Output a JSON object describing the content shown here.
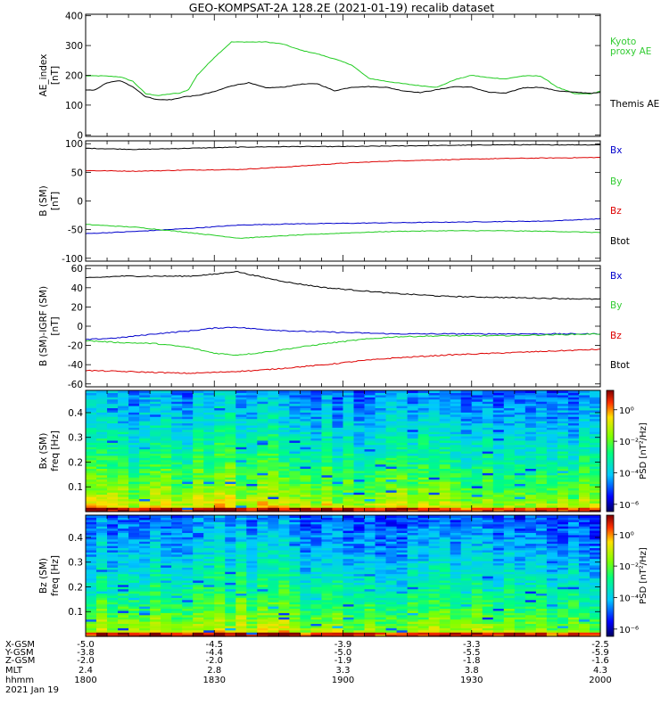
{
  "title": "GEO-KOMPSAT-2A 128.2E (2021-01-19) recalib dataset",
  "colors": {
    "black": "#000000",
    "blue": "#0000cc",
    "green": "#22cc22",
    "red": "#dd0000",
    "greenLabel": "#33cc33"
  },
  "chart_data": [
    {
      "type": "line",
      "ylabel": "AE_index\n[nT]",
      "ylim": [
        -5,
        405
      ],
      "yticks": [
        0,
        100,
        200,
        300,
        400
      ],
      "series": [
        {
          "name": "Kyoto proxy AE",
          "color": "#22cc22",
          "x": [
            0,
            4,
            8,
            11,
            14,
            17,
            20,
            22,
            24,
            26,
            30,
            34,
            38,
            42,
            46,
            50,
            54,
            58,
            62,
            66,
            70,
            74,
            78,
            82,
            86,
            90,
            94,
            98,
            102,
            106,
            110,
            114,
            118,
            120
          ],
          "values": [
            198,
            198,
            195,
            180,
            138,
            132,
            138,
            140,
            152,
            200,
            260,
            312,
            312,
            312,
            305,
            285,
            272,
            255,
            235,
            190,
            180,
            172,
            165,
            160,
            185,
            200,
            192,
            188,
            198,
            198,
            160,
            138,
            138,
            147
          ]
        },
        {
          "name": "Themis AE",
          "color": "#000000",
          "x": [
            0,
            2,
            5,
            8,
            11,
            14,
            17,
            20,
            23,
            26,
            30,
            34,
            38,
            42,
            46,
            50,
            54,
            58,
            62,
            66,
            70,
            74,
            78,
            82,
            86,
            90,
            94,
            98,
            102,
            106,
            110,
            114,
            118,
            120
          ],
          "values": [
            150,
            150,
            175,
            182,
            162,
            128,
            118,
            118,
            128,
            132,
            145,
            165,
            175,
            158,
            160,
            170,
            172,
            148,
            160,
            162,
            160,
            148,
            142,
            152,
            162,
            160,
            143,
            140,
            158,
            160,
            148,
            143,
            140,
            142
          ]
        }
      ],
      "labels": [
        {
          "text": "Kyoto\nproxy AE",
          "color": "#33cc33"
        },
        {
          "text": "Themis AE",
          "color": "#000000"
        }
      ]
    },
    {
      "type": "line",
      "ylabel": "B (SM)\n[nT]",
      "ylim": [
        -105,
        105
      ],
      "yticks": [
        -100,
        -50,
        0,
        50,
        100
      ],
      "series": [
        {
          "name": "Btot",
          "color": "#000000",
          "x": [
            0,
            12,
            24,
            36,
            48,
            60,
            72,
            84,
            96,
            108,
            120
          ],
          "values": [
            92,
            90,
            92,
            94,
            95,
            95,
            96,
            97,
            98,
            98,
            98
          ]
        },
        {
          "name": "Bz",
          "color": "#dd0000",
          "x": [
            0,
            12,
            24,
            36,
            48,
            60,
            72,
            84,
            96,
            108,
            120
          ],
          "values": [
            53,
            52,
            54,
            55,
            60,
            66,
            70,
            72,
            74,
            75,
            76
          ]
        },
        {
          "name": "Bx",
          "color": "#0000cc",
          "x": [
            0,
            12,
            24,
            36,
            48,
            60,
            72,
            84,
            96,
            108,
            120
          ],
          "values": [
            -57,
            -53,
            -48,
            -42,
            -40,
            -39,
            -38,
            -37,
            -36,
            -35,
            -31
          ]
        },
        {
          "name": "By",
          "color": "#22cc22",
          "x": [
            0,
            12,
            24,
            36,
            48,
            60,
            72,
            84,
            96,
            108,
            120
          ],
          "values": [
            -41,
            -46,
            -55,
            -65,
            -60,
            -56,
            -53,
            -52,
            -52,
            -53,
            -55
          ]
        }
      ],
      "labels": [
        {
          "text": "Bx",
          "color": "#0000cc"
        },
        {
          "text": "By",
          "color": "#33cc33"
        },
        {
          "text": "Bz",
          "color": "#dd0000"
        },
        {
          "text": "Btot",
          "color": "#000000"
        }
      ]
    },
    {
      "type": "line",
      "ylabel": "B (SM)-IGRF (SM)\n[nT]",
      "ylim": [
        -63,
        63
      ],
      "yticks": [
        -60,
        -40,
        -20,
        0,
        20,
        40,
        60
      ],
      "series": [
        {
          "name": "Btot",
          "color": "#000000",
          "x": [
            0,
            8,
            16,
            24,
            30,
            35,
            40,
            48,
            56,
            64,
            72,
            84,
            96,
            108,
            120
          ],
          "values": [
            50,
            52,
            52,
            52,
            54,
            57,
            52,
            45,
            40,
            37,
            34,
            31,
            30,
            29,
            28
          ]
        },
        {
          "name": "Bx",
          "color": "#0000cc",
          "x": [
            0,
            8,
            16,
            24,
            30,
            35,
            40,
            48,
            56,
            64,
            72,
            84,
            96,
            108,
            120
          ],
          "values": [
            -14,
            -12,
            -8,
            -5,
            -2,
            -1,
            -3,
            -5,
            -6,
            -7,
            -8,
            -8,
            -8,
            -8,
            -8
          ]
        },
        {
          "name": "By",
          "color": "#22cc22",
          "x": [
            0,
            8,
            16,
            24,
            30,
            35,
            40,
            48,
            56,
            64,
            72,
            84,
            96,
            108,
            120
          ],
          "values": [
            -15,
            -17,
            -18,
            -22,
            -28,
            -30,
            -28,
            -23,
            -18,
            -14,
            -11,
            -10,
            -10,
            -9,
            -8
          ]
        },
        {
          "name": "Bz",
          "color": "#dd0000",
          "x": [
            0,
            8,
            16,
            24,
            30,
            35,
            40,
            48,
            56,
            64,
            72,
            84,
            96,
            108,
            120
          ],
          "values": [
            -46,
            -47,
            -48,
            -49,
            -48,
            -47,
            -46,
            -43,
            -40,
            -36,
            -33,
            -30,
            -28,
            -26,
            -24
          ]
        }
      ],
      "labels": [
        {
          "text": "Bx",
          "color": "#0000cc"
        },
        {
          "text": "By",
          "color": "#33cc33"
        },
        {
          "text": "Bz",
          "color": "#dd0000"
        },
        {
          "text": "Btot",
          "color": "#000000"
        }
      ]
    },
    {
      "type": "heatmap",
      "ylabel": "Bx (SM)\nfreq [Hz]",
      "ylim": [
        0,
        0.49
      ],
      "yticks": [
        0.1,
        0.2,
        0.3,
        0.4
      ],
      "colorbar_label": "PSD [nT²/Hz]",
      "colorbar_ticks": [
        "10⁰",
        "10⁻²",
        "10⁻⁴",
        "10⁻⁶"
      ]
    },
    {
      "type": "heatmap",
      "ylabel": "Bz (SM)\nfreq [Hz]",
      "ylim": [
        0,
        0.49
      ],
      "yticks": [
        0.1,
        0.2,
        0.3,
        0.4
      ],
      "colorbar_label": "PSD [nT²/Hz]",
      "colorbar_ticks": [
        "10⁰",
        "10⁻²",
        "10⁻⁴",
        "10⁻⁶"
      ]
    }
  ],
  "xaxis": {
    "row_labels": [
      "X-GSM",
      "Y-GSM",
      "Z-GSM",
      "MLT",
      "hhmm"
    ],
    "date": "2021 Jan 19",
    "columns": [
      {
        "t": 0,
        "values": [
          "-5.0",
          "-3.8",
          "-2.0",
          "2.4",
          "1800"
        ]
      },
      {
        "t": 30,
        "values": [
          "-4.5",
          "-4.4",
          "-2.0",
          "2.8",
          "1830"
        ]
      },
      {
        "t": 60,
        "values": [
          "-3.9",
          "-5.0",
          "-1.9",
          "3.3",
          "1900"
        ]
      },
      {
        "t": 90,
        "values": [
          "-3.3",
          "-5.5",
          "-1.8",
          "3.8",
          "1930"
        ]
      },
      {
        "t": 120,
        "values": [
          "-2.5",
          "-5.9",
          "-1.6",
          "4.3",
          "2000"
        ]
      }
    ]
  }
}
